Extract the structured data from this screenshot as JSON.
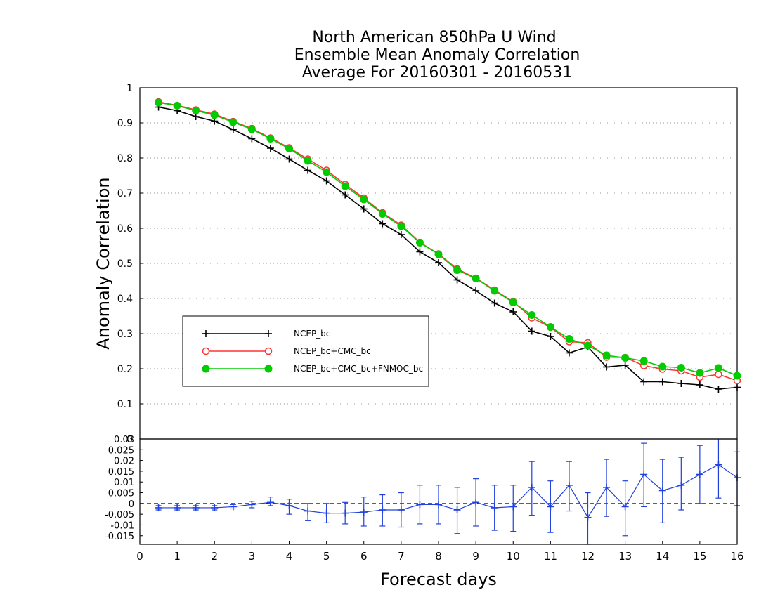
{
  "chart_data": [
    {
      "type": "line",
      "title": [
        "North American 850hPa U Wind",
        "Ensemble Mean Anomaly Correlation",
        "Average For 20160301 - 20160531"
      ],
      "ylabel": "Anomaly Correlation",
      "ylim": [
        0,
        1
      ],
      "xlim": [
        0,
        16
      ],
      "y_ticks": [
        "0",
        "0.1",
        "0.2",
        "0.3",
        "0.4",
        "0.5",
        "0.6",
        "0.7",
        "0.8",
        "0.9",
        "1"
      ],
      "grid": "horizontal dotted",
      "legend_placement": "lower-left",
      "x": [
        0.5,
        1,
        1.5,
        2,
        2.5,
        3,
        3.5,
        4,
        4.5,
        5,
        5.5,
        6,
        6.5,
        7,
        7.5,
        8,
        8.5,
        9,
        9.5,
        10,
        10.5,
        11,
        11.5,
        12,
        12.5,
        13,
        13.5,
        14,
        14.5,
        15,
        15.5,
        16
      ],
      "series": [
        {
          "name": "NCEP_bc",
          "color": "#000000",
          "marker": "plus",
          "values": [
            0.945,
            0.935,
            0.918,
            0.905,
            0.881,
            0.855,
            0.828,
            0.797,
            0.765,
            0.735,
            0.695,
            0.655,
            0.613,
            0.582,
            0.533,
            0.502,
            0.453,
            0.422,
            0.387,
            0.362,
            0.307,
            0.292,
            0.245,
            0.262,
            0.205,
            0.21,
            0.163,
            0.163,
            0.158,
            0.154,
            0.142,
            0.147
          ]
        },
        {
          "name": "NCEP_bc+CMC_bc",
          "color": "#ff3333",
          "marker": "open-circle",
          "values": [
            0.96,
            0.95,
            0.937,
            0.925,
            0.904,
            0.884,
            0.857,
            0.829,
            0.797,
            0.765,
            0.725,
            0.686,
            0.644,
            0.609,
            0.56,
            0.527,
            0.484,
            0.458,
            0.424,
            0.391,
            0.345,
            0.318,
            0.277,
            0.274,
            0.233,
            0.232,
            0.209,
            0.199,
            0.194,
            0.176,
            0.184,
            0.166
          ]
        },
        {
          "name": "NCEP_bc+CMC_bc+FNMOC_bc",
          "color": "#00cc00",
          "marker": "filled-circle",
          "values": [
            0.958,
            0.949,
            0.935,
            0.922,
            0.902,
            0.882,
            0.855,
            0.827,
            0.792,
            0.76,
            0.72,
            0.682,
            0.641,
            0.606,
            0.559,
            0.526,
            0.481,
            0.457,
            0.422,
            0.389,
            0.353,
            0.319,
            0.285,
            0.266,
            0.238,
            0.231,
            0.222,
            0.206,
            0.203,
            0.188,
            0.202,
            0.18
          ]
        }
      ]
    },
    {
      "type": "line",
      "subtype": "difference with error bars",
      "xlabel": "Forecast days",
      "xlim": [
        0,
        16
      ],
      "ylim": [
        -0.019,
        0.03
      ],
      "x_ticks": [
        "0",
        "1",
        "2",
        "3",
        "4",
        "5",
        "6",
        "7",
        "8",
        "9",
        "10",
        "11",
        "12",
        "13",
        "14",
        "15",
        "16"
      ],
      "y_ticks": [
        "-0.015",
        "-0.01",
        "-0.005",
        "0",
        "0.005",
        "0.01",
        "0.015",
        "0.02",
        "0.025",
        "0.03"
      ],
      "zero_line": "dashed",
      "x": [
        0.5,
        1,
        1.5,
        2,
        2.5,
        3,
        3.5,
        4,
        4.5,
        5,
        5.5,
        6,
        6.5,
        7,
        7.5,
        8,
        8.5,
        9,
        9.5,
        10,
        10.5,
        11,
        11.5,
        12,
        12.5,
        13,
        13.5,
        14,
        14.5,
        15,
        15.5,
        16
      ],
      "series": [
        {
          "color": "#2040dd",
          "marker": "plus",
          "values": [
            -0.002,
            -0.002,
            -0.002,
            -0.002,
            -0.0015,
            -0.0005,
            0.0005,
            -0.001,
            -0.0035,
            -0.0045,
            -0.0045,
            -0.004,
            -0.003,
            -0.003,
            -0.0005,
            -0.0005,
            -0.003,
            0.0005,
            -0.002,
            -0.0015,
            0.0075,
            -0.0015,
            0.0085,
            -0.0065,
            0.0075,
            -0.0015,
            0.0135,
            0.006,
            0.0085,
            0.0135,
            0.018,
            0.012
          ],
          "lower": [
            -0.003,
            -0.003,
            -0.003,
            -0.003,
            -0.0025,
            -0.002,
            -0.001,
            -0.005,
            -0.008,
            -0.009,
            -0.0095,
            -0.0105,
            -0.0105,
            -0.011,
            -0.0095,
            -0.0095,
            -0.014,
            -0.0105,
            -0.0125,
            -0.013,
            -0.0055,
            -0.0135,
            -0.0035,
            -0.019,
            -0.006,
            -0.015,
            -0.0015,
            -0.009,
            -0.003,
            0.0,
            0.0025,
            -0.001
          ],
          "upper": [
            -0.001,
            -0.001,
            -0.001,
            -0.001,
            -0.0005,
            0.001,
            0.003,
            0.002,
            0.0,
            0.0,
            0.0005,
            0.003,
            0.004,
            0.005,
            0.0085,
            0.0085,
            0.0075,
            0.0115,
            0.0085,
            0.0085,
            0.0195,
            0.0105,
            0.0195,
            0.005,
            0.0205,
            0.0105,
            0.028,
            0.0205,
            0.0215,
            0.027,
            0.0305,
            0.024
          ]
        }
      ]
    }
  ]
}
